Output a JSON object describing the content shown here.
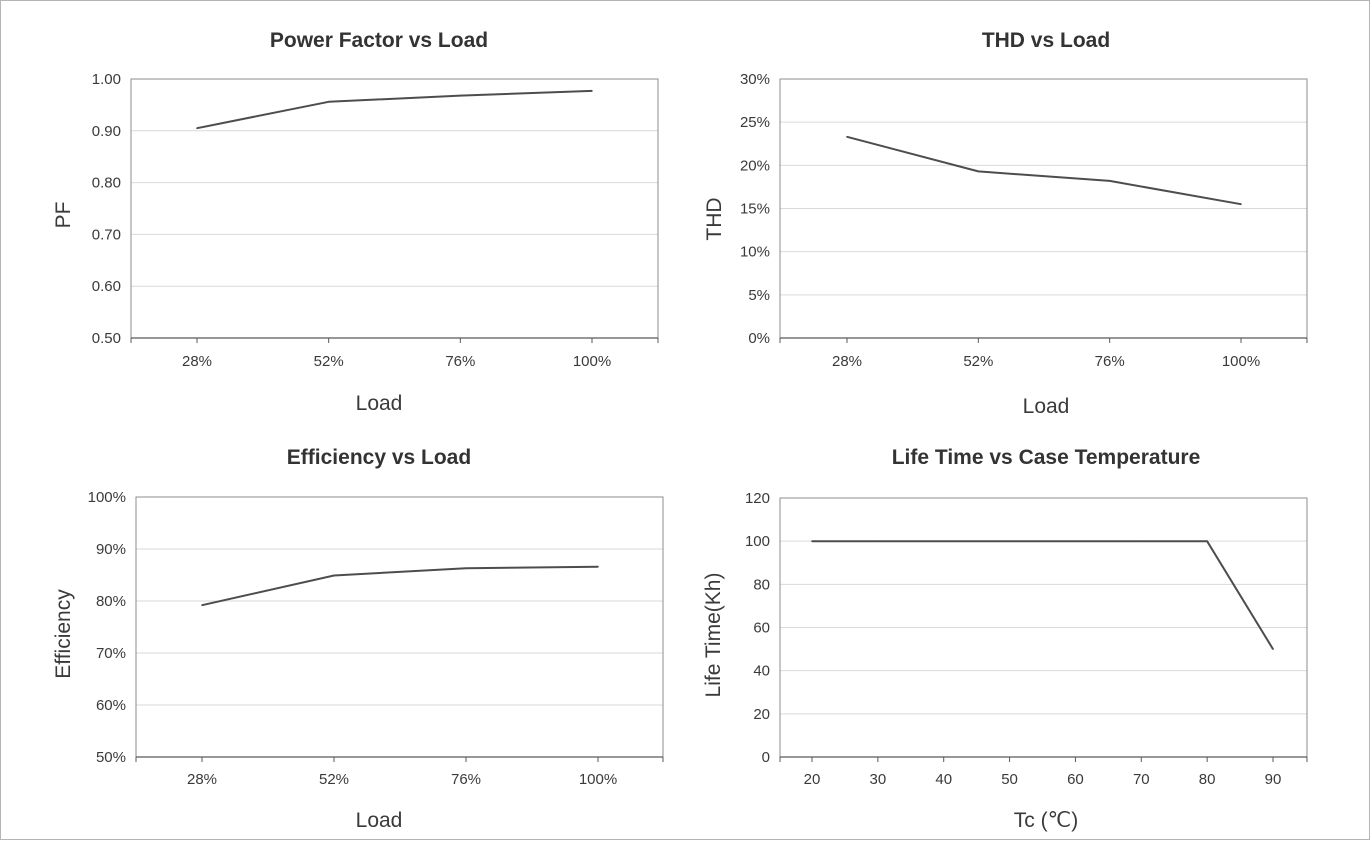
{
  "chart_data": [
    {
      "type": "line",
      "title": "Power Factor vs Load",
      "xlabel": "Load",
      "ylabel": "PF",
      "categories": [
        "28%",
        "52%",
        "76%",
        "100%"
      ],
      "series": [
        {
          "values": [
            0.905,
            0.956,
            0.968,
            0.977
          ]
        }
      ],
      "ylim": [
        0.5,
        1.0
      ],
      "yticks": [
        "0.50",
        "0.60",
        "0.70",
        "0.80",
        "0.90",
        "1.00"
      ],
      "grid": "horizontal",
      "line_color": "#4d4d4d"
    },
    {
      "type": "line",
      "title": "THD vs Load",
      "xlabel": "Load",
      "ylabel": "THD",
      "categories": [
        "28%",
        "52%",
        "76%",
        "100%"
      ],
      "series": [
        {
          "values": [
            0.233,
            0.193,
            0.182,
            0.155
          ]
        }
      ],
      "ylim": [
        0,
        0.3
      ],
      "yticks": [
        "0%",
        "5%",
        "10%",
        "15%",
        "20%",
        "25%",
        "30%"
      ],
      "grid": "horizontal",
      "line_color": "#4d4d4d"
    },
    {
      "type": "line",
      "title": "Efficiency vs Load",
      "xlabel": "Load",
      "ylabel": "Efficiency",
      "categories": [
        "28%",
        "52%",
        "76%",
        "100%"
      ],
      "series": [
        {
          "values": [
            0.792,
            0.849,
            0.863,
            0.866
          ]
        }
      ],
      "ylim": [
        0.5,
        1.0
      ],
      "yticks": [
        "50%",
        "60%",
        "70%",
        "80%",
        "90%",
        "100%"
      ],
      "grid": "horizontal",
      "line_color": "#4d4d4d"
    },
    {
      "type": "line",
      "title": "Life Time vs Case Temperature",
      "xlabel": "Tc (℃)",
      "ylabel": "Life Time(Kh)",
      "categories": [
        "20",
        "30",
        "40",
        "50",
        "60",
        "70",
        "80",
        "90"
      ],
      "series": [
        {
          "values": [
            100,
            100,
            100,
            100,
            100,
            100,
            100,
            50
          ]
        }
      ],
      "ylim": [
        0,
        120
      ],
      "yticks": [
        "0",
        "20",
        "40",
        "60",
        "80",
        "100",
        "120"
      ],
      "grid": "horizontal",
      "line_color": "#4d4d4d"
    }
  ]
}
